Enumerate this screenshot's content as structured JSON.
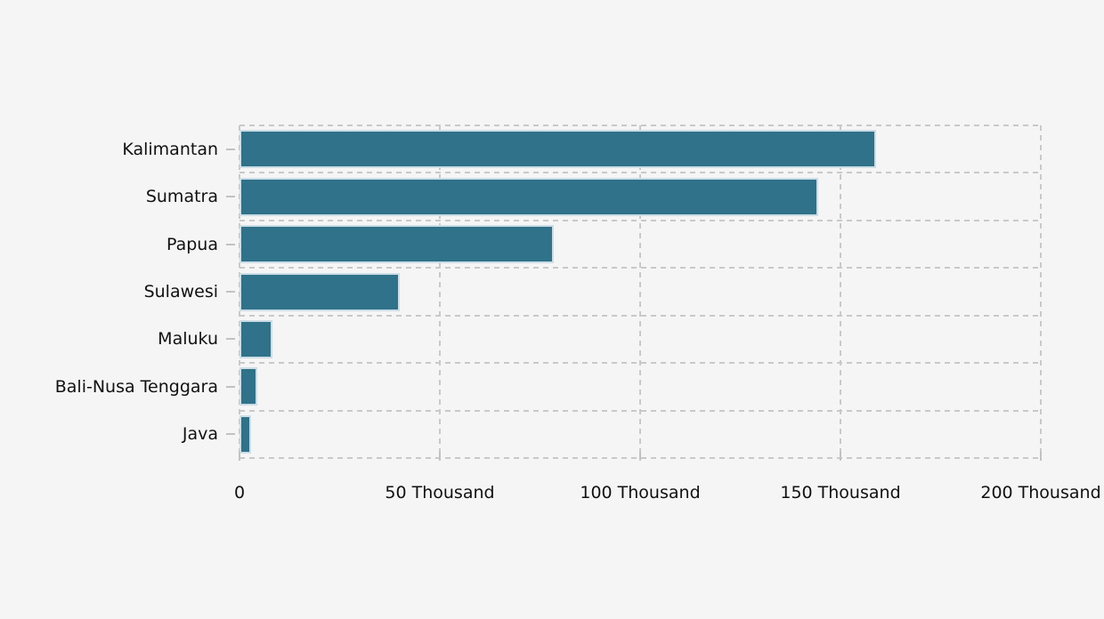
{
  "chart_data": {
    "type": "bar",
    "orientation": "horizontal",
    "title": "",
    "xlabel": "",
    "ylabel": "",
    "categories": [
      "Kalimantan",
      "Sumatra",
      "Papua",
      "Sulawesi",
      "Maluku",
      "Bali-Nusa Tenggara",
      "Java"
    ],
    "values": [
      158500,
      144000,
      78000,
      39600,
      7800,
      4200,
      2500
    ],
    "xlim": [
      0,
      200000
    ],
    "x_tick_values": [
      0,
      50000,
      100000,
      150000,
      200000
    ],
    "x_tick_labels": [
      "0",
      "50 Thousand",
      "100 Thousand",
      "150 Thousand",
      "200 Thousand"
    ],
    "grid": "dashed, both axes, light gray",
    "legend": "none",
    "colors": {
      "background": "#f5f5f5",
      "bar_fill": "#2f7289",
      "bar_edge": "#ccdde6",
      "grid_line": "#c9c9c9",
      "tick_mark": "#c2c2c2",
      "text": "#111111"
    }
  }
}
